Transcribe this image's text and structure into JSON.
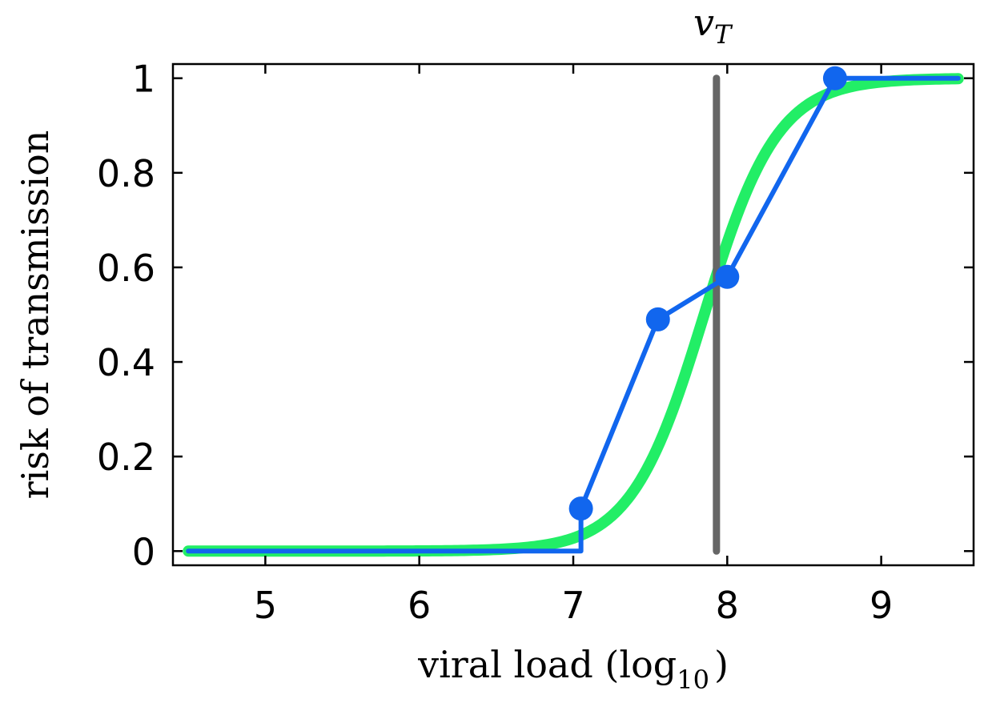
{
  "chart_data": {
    "type": "line",
    "xlabel": "viral load (log",
    "xlabel_sub": "10",
    "xlabel_close": ")",
    "ylabel": "risk of transmission",
    "xlim": [
      4.4,
      9.6
    ],
    "ylim": [
      -0.03,
      1.03
    ],
    "xticks": [
      5,
      6,
      7,
      8,
      9
    ],
    "yticks": [
      0,
      0.2,
      0.4,
      0.6,
      0.8,
      1
    ],
    "ytick_labels": [
      "0",
      "0.2",
      "0.4",
      "0.6",
      "0.8",
      "1"
    ],
    "grid": false,
    "series": [
      {
        "color": "#22ee66",
        "style": "smooth",
        "logistic": {
          "midpoint": 7.85,
          "steepness": 4.2,
          "x_start": 4.5,
          "x_end": 9.5
        }
      },
      {
        "color": "#1166ee",
        "style": "step-markers",
        "x": [
          4.5,
          7.05,
          7.05,
          7.55,
          8.0,
          8.7,
          9.5
        ],
        "y": [
          0,
          0,
          0.09,
          0.49,
          0.58,
          1.0,
          1.0
        ],
        "markers": [
          {
            "x": 7.05,
            "y": 0.09
          },
          {
            "x": 7.55,
            "y": 0.49
          },
          {
            "x": 8.0,
            "y": 0.58
          },
          {
            "x": 8.7,
            "y": 1.0
          }
        ]
      }
    ],
    "vline": {
      "x": 7.93,
      "label": "v",
      "label_sub": "T",
      "color": "#666666"
    }
  }
}
